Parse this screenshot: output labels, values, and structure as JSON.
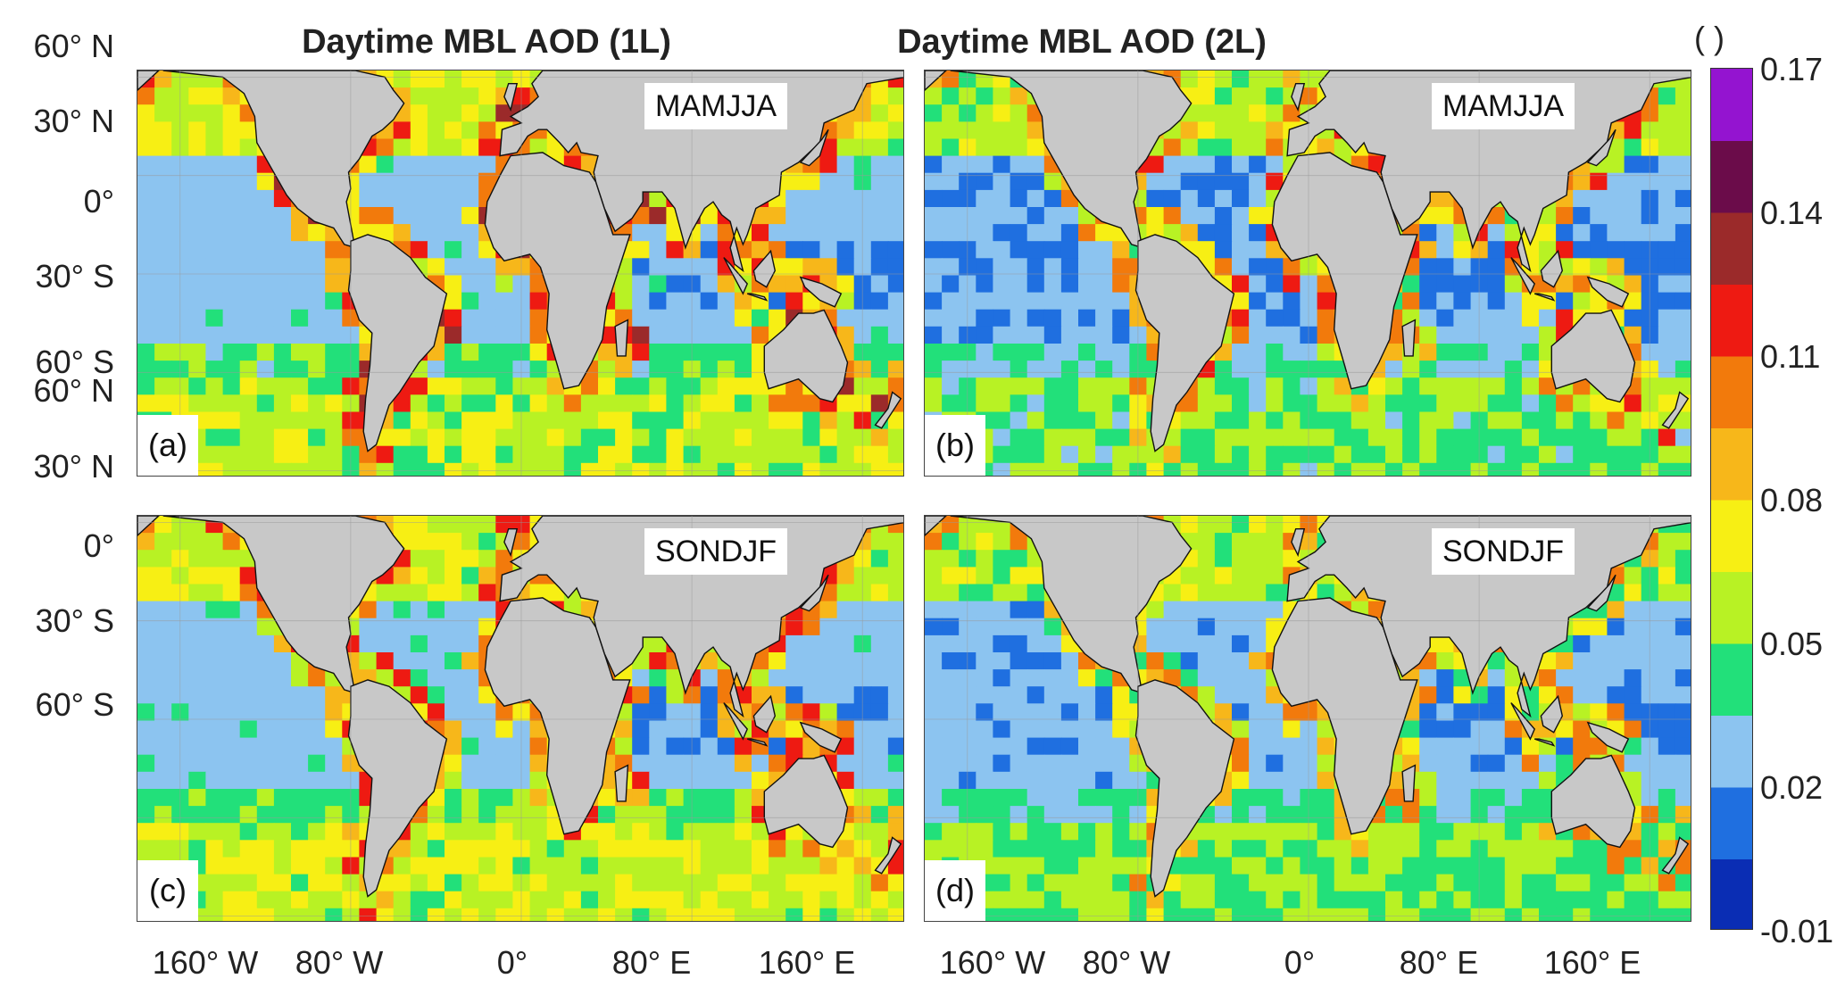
{
  "titles": {
    "left": "Daytime MBL AOD (1L)",
    "right": "Daytime MBL AOD (2L)"
  },
  "colorbar": {
    "unit_label": "( )",
    "ticks": [
      "0.17",
      "0.14",
      "0.11",
      "0.08",
      "0.05",
      "0.02",
      "-0.01"
    ],
    "vmin": -0.01,
    "vmax": 0.17,
    "colors": [
      "#0a2db4",
      "#1f6fe0",
      "#8cc4f0",
      "#22e07a",
      "#b8f224",
      "#f7ef14",
      "#f7b71a",
      "#f27a0c",
      "#ee1a12",
      "#9b2a2a",
      "#6b0c4a",
      "#9414d0"
    ]
  },
  "lat_labels": {
    "top_row": [
      "60° N",
      "30° N",
      "0°",
      "30° S",
      "60° S"
    ],
    "bottom_row": [
      "60° N",
      "30° N",
      "0°",
      "30° S",
      "60° S"
    ]
  },
  "lon_labels": {
    "left": [
      "160°  W",
      "80°  W",
      "0°",
      "80°  E",
      "160°  E"
    ],
    "right": [
      "160°  W",
      "80°  W",
      "0°",
      "80°  E",
      "160°  E"
    ]
  },
  "panels": [
    {
      "label": "(a)",
      "season": "MAMJJA",
      "base": 0.03,
      "coastal": 0.06,
      "south": 0.058
    },
    {
      "label": "(b)",
      "season": "MAMJJA",
      "base": 0.022,
      "coastal": 0.045,
      "south": 0.048
    },
    {
      "label": "(c)",
      "season": "SONDJF",
      "base": 0.03,
      "coastal": 0.055,
      "south": 0.062
    },
    {
      "label": "(d)",
      "season": "SONDJF",
      "base": 0.024,
      "coastal": 0.04,
      "south": 0.05
    }
  ],
  "colors": {
    "land": "#c8c8c8",
    "coast": "#111111",
    "grid": "#9a9a9a"
  }
}
